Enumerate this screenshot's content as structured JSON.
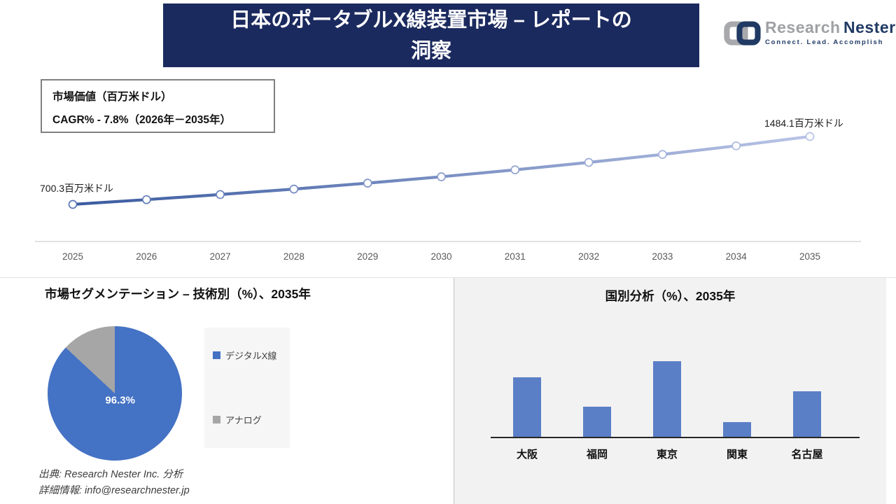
{
  "banner": {
    "title_line1": "日本のポータブルX線装置市場 – レポートの",
    "title_line2": "洞察"
  },
  "logo": {
    "brand_primary": "Research",
    "brand_secondary": "Nester",
    "tagline": "Connect. Lead. Accomplish"
  },
  "info_box": {
    "line1": "市場価値（百万米ドル）",
    "line2": "CAGR% - 7.8%（2026年－2035年）"
  },
  "chart_data": [
    {
      "type": "line",
      "title": "市場価値（百万米ドル）",
      "x": [
        "2025",
        "2026",
        "2027",
        "2028",
        "2029",
        "2030",
        "2031",
        "2032",
        "2033",
        "2034",
        "2035"
      ],
      "values": [
        700.3,
        755.0,
        813.9,
        877.4,
        945.8,
        1019.6,
        1099.1,
        1184.8,
        1277.2,
        1376.9,
        1484.1
      ],
      "values_note": "endpoints labeled on chart; intermediate points estimated from 7.8% CAGR",
      "start_label": "700.3百万米ドル",
      "end_label": "1484.1百万米ドル",
      "cagr": "7.8%",
      "period": "2026年－2035年",
      "ylabel": "百万米ドル",
      "grid": "off",
      "line_gradient": [
        "#3a5a9f",
        "#b9c4e6"
      ],
      "marker_gradient": [
        "#5a76b4",
        "#b8c3e6"
      ],
      "axis_color": "#d9d9d9",
      "tick_color": "#595959"
    },
    {
      "type": "pie",
      "title": "市場セグメンテーション – 技術別（%）、2035年",
      "labels": [
        "デジタルX線",
        "アナログ"
      ],
      "values": [
        96.3,
        3.7
      ],
      "colors": [
        "#4472c4",
        "#a6a6a6"
      ],
      "center_label": "96.3%",
      "legend_position": "right"
    },
    {
      "type": "bar",
      "title": "国別分析（%）、2035年",
      "categories": [
        "大阪",
        "福岡",
        "東京",
        "関東",
        "名古屋"
      ],
      "values": [
        26,
        13,
        33,
        6.5,
        20
      ],
      "values_note": "no value labels shown; estimated from relative bar heights",
      "bar_color": "#5b7fc7",
      "baseline_color": "#262626",
      "panel_bg": "#f2f2f2"
    }
  ],
  "footer": {
    "source": "出典: Research Nester Inc. 分析",
    "contact": "詳細情報: info@researchnester.jp"
  },
  "colors": {
    "banner_bg": "#1b2a5e",
    "banner_text": "#ffffff",
    "logo_gray": "#9fa1a4",
    "logo_navy": "#203a64"
  }
}
